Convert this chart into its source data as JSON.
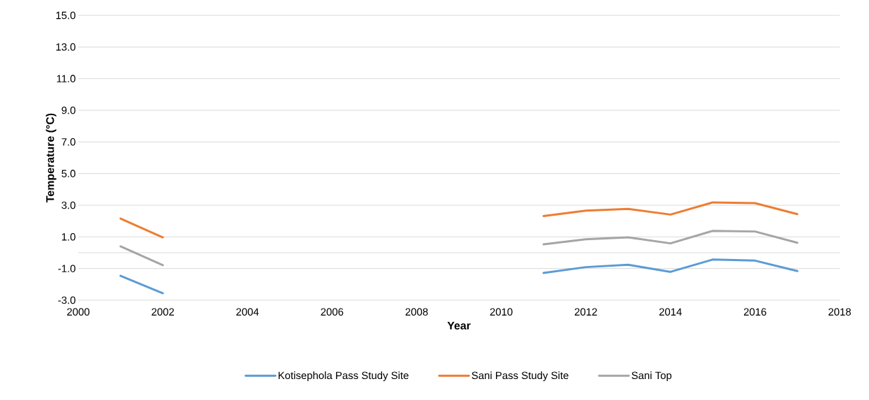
{
  "chart_data": {
    "type": "line",
    "xlabel": "Year",
    "ylabel": "Temperature (°C)",
    "x": [
      2001,
      2002,
      2003,
      2004,
      2005,
      2006,
      2007,
      2008,
      2009,
      2010,
      2011,
      2012,
      2013,
      2014,
      2015,
      2016,
      2017
    ],
    "series": [
      {
        "name": "Kotisephola Pass Study Site",
        "color": "#5b9bd5",
        "values": [
          -1.46,
          -2.56,
          null,
          null,
          null,
          null,
          null,
          null,
          null,
          null,
          -1.28,
          -0.91,
          -0.76,
          -1.21,
          -0.43,
          -0.5,
          -1.16
        ]
      },
      {
        "name": "Sani Pass Study Site",
        "color": "#ed7d31",
        "values": [
          2.16,
          0.97,
          null,
          null,
          null,
          null,
          null,
          null,
          null,
          null,
          2.32,
          2.66,
          2.77,
          2.41,
          3.18,
          3.13,
          2.44
        ]
      },
      {
        "name": "Sani Top",
        "color": "#a5a5a5",
        "values": [
          0.4,
          -0.79,
          null,
          null,
          null,
          null,
          null,
          null,
          null,
          null,
          0.53,
          0.85,
          0.97,
          0.59,
          1.38,
          1.34,
          0.63
        ]
      }
    ],
    "xlim": [
      2000,
      2018
    ],
    "xticks": [
      2000,
      2002,
      2004,
      2006,
      2008,
      2010,
      2012,
      2014,
      2016,
      2018
    ],
    "ylim": [
      -3,
      15
    ],
    "yticks": [
      {
        "value": -3,
        "label": "-3.0"
      },
      {
        "value": -1,
        "label": "-1.0"
      },
      {
        "value": 1,
        "label": "1.0"
      },
      {
        "value": 3,
        "label": "3.0"
      },
      {
        "value": 5,
        "label": "5.0"
      },
      {
        "value": 7,
        "label": "7.0"
      },
      {
        "value": 9,
        "label": "9.0"
      },
      {
        "value": 11,
        "label": "11.0"
      },
      {
        "value": 13,
        "label": "13.0"
      },
      {
        "value": 15,
        "label": "15.0"
      }
    ],
    "ref_lines": [
      {
        "axis": "y",
        "value": 0,
        "color": "#d9d9d9"
      }
    ],
    "grid": "y",
    "legend": "bottom",
    "marker": "none",
    "line_style": "solid"
  }
}
